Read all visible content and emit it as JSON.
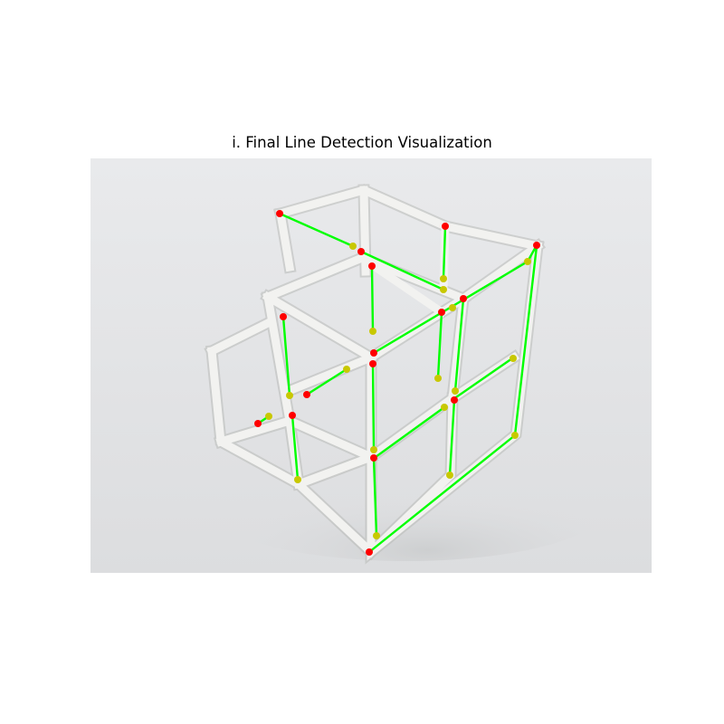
{
  "figure": {
    "title": "i. Final Line Detection Visualization"
  },
  "scene": {
    "subject": "white 3D cube lattice sculpture",
    "background_color": "#e3e4e6",
    "frame_color": "#f1f1ef",
    "frame_shadow_color": "#b9bbb8",
    "detected_line_color": "#00ff00",
    "start_point_color": "#ff0000",
    "end_point_color": "#c8c800"
  }
}
